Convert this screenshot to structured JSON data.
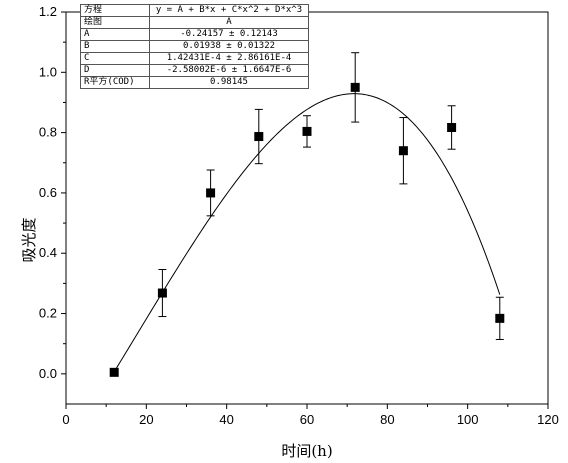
{
  "chart_data": {
    "type": "scatter",
    "title": "",
    "xlabel": "时间(h)",
    "ylabel": "吸光度",
    "xlim": [
      0,
      120
    ],
    "ylim": [
      -0.1,
      1.2
    ],
    "x_ticks": [
      0,
      20,
      40,
      60,
      80,
      100,
      120
    ],
    "y_ticks": [
      0.0,
      0.2,
      0.4,
      0.6,
      0.8,
      1.0,
      1.2
    ],
    "x_tick_labels": [
      "0",
      "20",
      "40",
      "60",
      "80",
      "100",
      "120"
    ],
    "y_tick_labels": [
      "0.0",
      "0.2",
      "0.4",
      "0.6",
      "0.8",
      "1.0",
      "1.2"
    ],
    "grid": false,
    "series": [
      {
        "x": [
          12,
          24,
          36,
          48,
          60,
          72,
          84,
          96,
          108
        ],
        "y": [
          0.005,
          0.268,
          0.6,
          0.787,
          0.804,
          0.95,
          0.74,
          0.817,
          0.184
        ],
        "error": [
          0.0,
          0.078,
          0.076,
          0.09,
          0.052,
          0.115,
          0.11,
          0.072,
          0.07
        ]
      }
    ],
    "fit": {
      "model": "cubic",
      "coefficients": {
        "A": -0.24157,
        "B": 0.01938,
        "C": 0.000142431,
        "D": -2.58002e-06
      },
      "x_range": [
        12,
        108
      ]
    }
  },
  "fit_table": {
    "rows": [
      {
        "key": "方程",
        "value": "y = A + B*x + C*x^2 + D*x^3"
      },
      {
        "key": "绘图",
        "value": "A"
      },
      {
        "key": "A",
        "value": "-0.24157 ± 0.12143"
      },
      {
        "key": "B",
        "value": "0.01938 ± 0.01322"
      },
      {
        "key": "C",
        "value": "1.42431E-4 ± 2.86161E-4"
      },
      {
        "key": "D",
        "value": "-2.58002E-6 ± 1.6647E-6"
      },
      {
        "key": "R平方(COD)",
        "value": "0.98145"
      }
    ]
  }
}
